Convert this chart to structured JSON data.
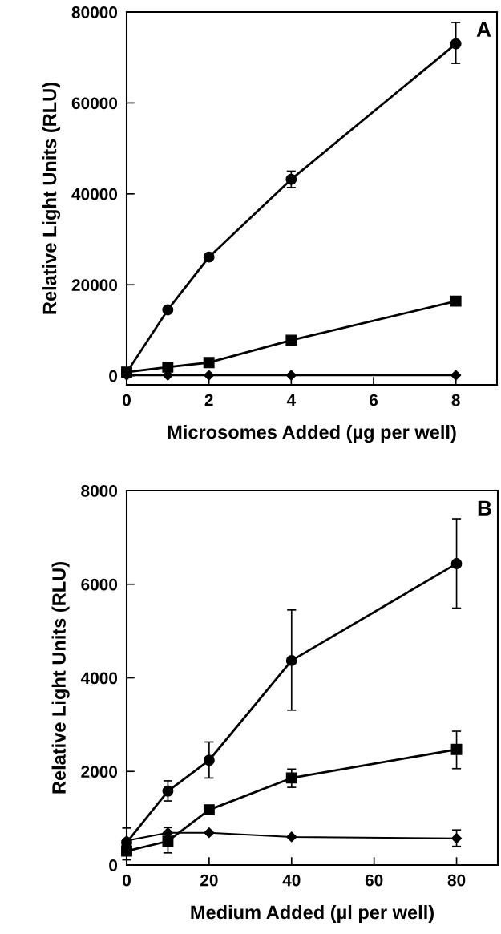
{
  "chart_data": [
    {
      "type": "line",
      "xlabel": "Microsomes Added (µg per well)",
      "ylabel": "Relative Light Units (RLU)",
      "annotations": [
        "A"
      ],
      "xlim": [
        0,
        9
      ],
      "xticks": [
        0,
        2,
        4,
        6,
        8
      ],
      "ylim": [
        -2000,
        80000
      ],
      "yticks": [
        0,
        20000,
        40000,
        60000,
        80000
      ],
      "grid": false,
      "legend": false,
      "x": [
        0,
        1,
        2,
        4,
        8
      ],
      "series": [
        {
          "color": "#000000",
          "marker": "circle",
          "values": [
            700,
            14500,
            26100,
            43200,
            73000
          ],
          "errors": [
            null,
            null,
            null,
            [
              41400,
              45000
            ],
            [
              68700,
              77700
            ]
          ]
        },
        {
          "color": "#000000",
          "marker": "square",
          "values": [
            800,
            1900,
            2900,
            7800,
            16400
          ]
        },
        {
          "color": "#000000",
          "marker": "diamond",
          "values": [
            100,
            100,
            100,
            100,
            100
          ]
        }
      ]
    },
    {
      "type": "line",
      "xlabel": "Medium Added (µl per well)",
      "ylabel": "Relative Light Units (RLU)",
      "annotations": [
        "B"
      ],
      "xlim": [
        0,
        90
      ],
      "xticks": [
        0,
        20,
        40,
        60,
        80
      ],
      "ylim": [
        0,
        8000
      ],
      "yticks": [
        0,
        2000,
        4000,
        6000,
        8000
      ],
      "grid": false,
      "legend": false,
      "x": [
        0,
        10,
        20,
        40,
        80
      ],
      "series": [
        {
          "color": "#000000",
          "marker": "circle",
          "values": [
            480,
            1580,
            2240,
            4370,
            6440
          ],
          "errors": [
            null,
            [
              1370,
              1800
            ],
            [
              1860,
              2630
            ],
            [
              3310,
              5450
            ],
            [
              5490,
              7400
            ]
          ]
        },
        {
          "color": "#000000",
          "marker": "square",
          "values": [
            300,
            510,
            1180,
            1860,
            2470
          ],
          "errors": [
            [
              110,
              300
            ],
            [
              260,
              720
            ],
            null,
            [
              1660,
              2050
            ],
            [
              2060,
              2860
            ]
          ]
        },
        {
          "color": "#000000",
          "marker": "diamond",
          "values": [
            520,
            690,
            690,
            600,
            570
          ],
          "errors": [
            [
              520,
              790
            ],
            [
              690,
              800
            ],
            null,
            null,
            [
              400,
              750
            ]
          ]
        }
      ]
    }
  ]
}
